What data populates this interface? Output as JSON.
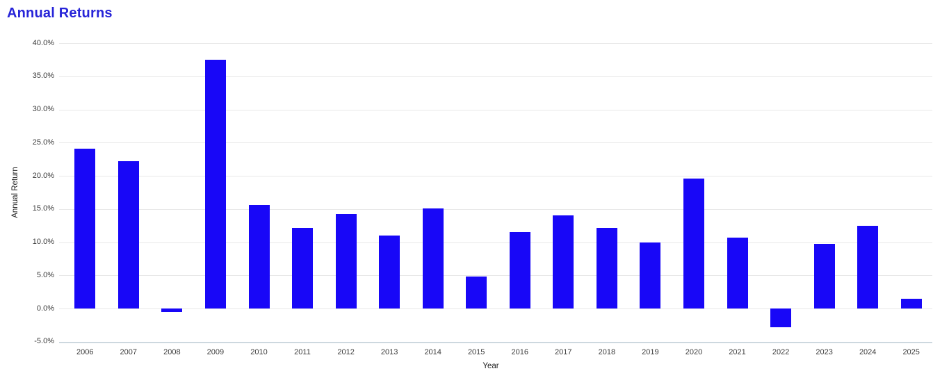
{
  "page": {
    "title": "Annual Returns"
  },
  "chart_data": {
    "type": "bar",
    "title": "Annual Returns",
    "xlabel": "Year",
    "ylabel": "Annual Return",
    "categories": [
      "2006",
      "2007",
      "2008",
      "2009",
      "2010",
      "2011",
      "2012",
      "2013",
      "2014",
      "2015",
      "2016",
      "2017",
      "2018",
      "2019",
      "2020",
      "2021",
      "2022",
      "2023",
      "2024",
      "2025"
    ],
    "values": [
      24.1,
      22.2,
      -0.5,
      37.5,
      15.6,
      12.2,
      14.2,
      11.0,
      15.1,
      4.8,
      11.5,
      14.0,
      12.2,
      10.0,
      19.6,
      10.7,
      -2.8,
      9.7,
      12.5,
      1.5
    ],
    "ylim": [
      -5,
      40
    ],
    "ytick_step": 5,
    "ytick_labels": [
      "-5.0%",
      "0.0%",
      "5.0%",
      "10.0%",
      "15.0%",
      "20.0%",
      "25.0%",
      "30.0%",
      "35.0%",
      "40.0%"
    ],
    "legend_position": "none",
    "grid": "on",
    "bar_color": "#1807f7",
    "title_color": "#2724d8",
    "grid_color": "#e8e8e8",
    "bottom_axis_line_color": "#cdd8df",
    "tick_label_color": "#3b3b3b"
  }
}
